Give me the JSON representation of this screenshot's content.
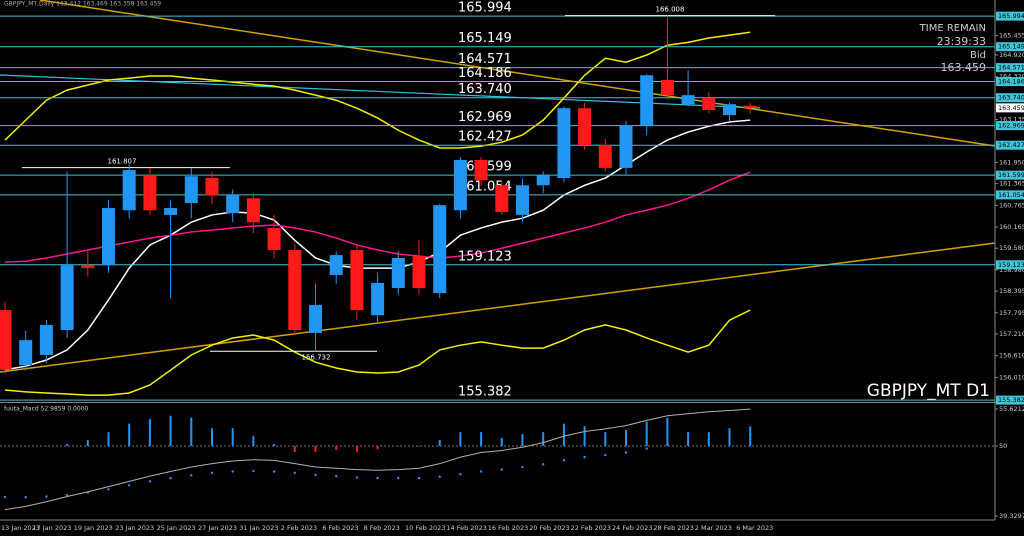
{
  "chart_data": [
    {
      "type": "candlestick",
      "title": "GBPJPY_MT D1",
      "subtitle": "GBPJPY_MT,Daily 163.412 163.469 163.358 163.459",
      "categories": [
        "13 Jan 2023",
        null,
        "17 Jan 2023",
        null,
        "19 Jan 2023",
        null,
        "23 Jan 2023",
        null,
        "25 Jan 2023",
        null,
        "27 Jan 2023",
        null,
        "31 Jan 2023",
        null,
        "2 Feb 2023",
        null,
        "6 Feb 2023",
        null,
        "8 Feb 2023",
        null,
        "10 Feb 2023",
        null,
        "14 Feb 2023",
        null,
        "16 Feb 2023",
        null,
        "20 Feb 2023",
        null,
        "22 Feb 2023",
        null,
        "24 Feb 2023",
        null,
        "28 Feb 2023",
        null,
        "2 Mar 2023",
        null,
        "6 Mar 2023"
      ],
      "open": [
        157.87,
        156.35,
        156.63,
        157.32,
        159.11,
        159.11,
        160.63,
        161.6,
        160.5,
        160.83,
        161.52,
        160.55,
        160.96,
        160.14,
        159.53,
        157.24,
        158.84,
        159.53,
        157.73,
        158.48,
        159.36,
        158.34,
        160.63,
        162.02,
        161.32,
        160.5,
        161.32,
        161.52,
        163.45,
        162.43,
        161.8,
        162.98,
        164.23,
        163.56,
        163.73,
        163.26,
        163.52
      ],
      "high": [
        158.1,
        157.3,
        157.6,
        161.7,
        159.5,
        160.9,
        161.9,
        161.8,
        160.9,
        161.8,
        161.7,
        161.2,
        161.1,
        160.5,
        159.7,
        158.6,
        159.5,
        159.7,
        158.9,
        159.5,
        159.8,
        160.8,
        162.1,
        162.1,
        161.4,
        161.5,
        161.7,
        163.5,
        163.6,
        162.6,
        163.1,
        164.4,
        166.008,
        164.5,
        163.9,
        163.6,
        163.6
      ],
      "low": [
        156.1,
        156.2,
        156.4,
        157.1,
        158.8,
        158.9,
        160.4,
        160.5,
        158.2,
        160.4,
        160.8,
        160.3,
        160.0,
        159.3,
        157.2,
        156.732,
        158.6,
        157.6,
        157.5,
        158.3,
        158.3,
        158.2,
        160.4,
        161.3,
        160.5,
        160.3,
        161.1,
        161.4,
        162.3,
        161.7,
        161.6,
        162.7,
        163.7,
        163.5,
        163.3,
        163.1,
        163.3
      ],
      "close": [
        156.22,
        157.04,
        157.46,
        159.11,
        159.03,
        160.69,
        161.74,
        160.63,
        160.69,
        161.57,
        161.05,
        161.05,
        160.3,
        159.53,
        157.32,
        158.01,
        159.39,
        157.87,
        158.62,
        159.31,
        158.48,
        160.77,
        162.02,
        161.46,
        160.58,
        161.32,
        161.6,
        163.45,
        162.43,
        161.8,
        162.98,
        164.36,
        163.81,
        163.81,
        163.4,
        163.56,
        163.459
      ],
      "up_color": "#2196f3",
      "down_color": "#ff1a1a",
      "overlays": [
        {
          "color": "#ffffff",
          "values": [
            156.22,
            156.32,
            156.49,
            156.77,
            157.32,
            158.15,
            159.03,
            159.67,
            159.94,
            160.3,
            160.5,
            160.58,
            160.55,
            160.36,
            159.8,
            159.31,
            159.11,
            159.03,
            159.03,
            159.03,
            159.2,
            159.47,
            159.94,
            160.14,
            160.3,
            160.41,
            160.63,
            161.05,
            161.32,
            161.52,
            161.88,
            162.24,
            162.57,
            162.79,
            162.95,
            163.07,
            163.12
          ]
        },
        {
          "color": "#ff1493",
          "values": [
            159.2,
            159.22,
            159.31,
            159.42,
            159.53,
            159.64,
            159.75,
            159.86,
            159.94,
            160.03,
            160.08,
            160.14,
            160.19,
            160.22,
            160.14,
            160.03,
            159.86,
            159.67,
            159.53,
            159.42,
            159.36,
            159.31,
            159.36,
            159.45,
            159.58,
            159.72,
            159.86,
            160.0,
            160.14,
            160.3,
            160.5,
            160.63,
            160.77,
            160.96,
            161.19,
            161.46,
            161.68
          ]
        },
        {
          "color": "#f0f000",
          "values": [
            162.57,
            163.12,
            163.67,
            163.95,
            164.09,
            164.23,
            164.28,
            164.34,
            164.34,
            164.28,
            164.23,
            164.17,
            164.11,
            164.06,
            163.95,
            163.81,
            163.67,
            163.45,
            163.18,
            162.84,
            162.57,
            162.35,
            162.35,
            162.4,
            162.51,
            162.71,
            163.12,
            163.73,
            164.36,
            164.83,
            164.72,
            164.92,
            165.19,
            165.27,
            165.39,
            165.47,
            165.55
          ]
        },
        {
          "color": "#f0f000",
          "values": [
            155.66,
            155.61,
            155.58,
            155.55,
            155.52,
            155.52,
            155.58,
            155.8,
            156.21,
            156.63,
            156.9,
            157.1,
            157.18,
            157.04,
            156.71,
            156.43,
            156.27,
            156.16,
            156.13,
            156.16,
            156.35,
            156.77,
            156.9,
            156.99,
            156.9,
            156.82,
            156.82,
            157.04,
            157.32,
            157.46,
            157.32,
            157.1,
            156.9,
            156.71,
            156.9,
            157.59,
            157.87
          ]
        }
      ],
      "levels": [
        165.994,
        165.149,
        164.571,
        164.186,
        {
          "value": 163.74,
          "label": "163.740"
        },
        162.969,
        162.427,
        161.599,
        161.054,
        159.123,
        155.382
      ],
      "level_color": "#40c4d8",
      "annotations": [
        166.008,
        161.807,
        156.732
      ],
      "time_remain_label": "TIME REMAIN",
      "time_remain": "23:39:33",
      "bid_label": "Bid",
      "bid": 163.459,
      "ylim": [
        155.33,
        166.44
      ],
      "yticks": [
        165.455,
        {
          "value": 164.92,
          "label": "164.920"
        },
        {
          "value": 164.32,
          "label": "164.320"
        },
        163.135,
        {
          "value": 161.95,
          "label": "161.950"
        },
        161.365,
        160.765,
        160.165,
        {
          "value": 159.58,
          "label": "159.580"
        },
        {
          "value": 158.98,
          "label": "158.980"
        },
        158.395,
        157.795,
        {
          "value": 157.21,
          "label": "157.210"
        },
        {
          "value": 156.61,
          "label": "156.610"
        },
        {
          "value": 156.01,
          "label": "156.010"
        }
      ]
    },
    {
      "type": "macd",
      "title": "fuuta_Macd 52.9859 0.0000",
      "histogram": [
        50.0,
        50.0,
        50.0,
        50.3,
        50.9,
        52.1,
        53.4,
        54.1,
        54.6,
        54.3,
        52.7,
        52.7,
        51.5,
        50.3,
        49.1,
        49.1,
        49.4,
        49.1,
        49.5,
        50.0,
        50.0,
        50.9,
        52.1,
        52.1,
        51.2,
        51.8,
        52.1,
        53.4,
        53.0,
        52.1,
        52.4,
        53.7,
        54.3,
        52.1,
        52.1,
        52.7,
        52.9859
      ],
      "signal": [
        42.2,
        42.2,
        42.3,
        42.5,
        42.9,
        43.4,
        44.0,
        44.6,
        45.1,
        45.5,
        45.9,
        46.1,
        46.2,
        46.1,
        45.9,
        45.6,
        45.4,
        45.2,
        45.1,
        45.1,
        45.1,
        45.3,
        45.7,
        46.1,
        46.4,
        46.8,
        47.2,
        47.8,
        48.3,
        48.6,
        49.0,
        49.6,
        50.2,
        50.6,
        51.0,
        51.4,
        51.7
      ],
      "main": [
        40.3,
        40.8,
        41.5,
        42.3,
        43.0,
        43.8,
        44.6,
        45.4,
        46.1,
        46.8,
        47.3,
        47.7,
        47.9,
        47.8,
        47.3,
        46.8,
        46.6,
        46.4,
        46.3,
        46.4,
        46.6,
        47.3,
        48.3,
        49.0,
        49.3,
        49.8,
        50.5,
        51.5,
        52.2,
        52.6,
        53.1,
        53.9,
        54.6,
        54.9,
        55.2,
        55.4,
        55.6
      ],
      "baseline": 50,
      "up_color": "#2196f3",
      "down_color": "#ff1a1a",
      "signal_color": "#2196f3",
      "main_color": "#b0b0b0",
      "ylim": [
        38.72,
        56.54
      ],
      "yticks": [
        55.6212,
        50,
        39.3297
      ]
    }
  ]
}
